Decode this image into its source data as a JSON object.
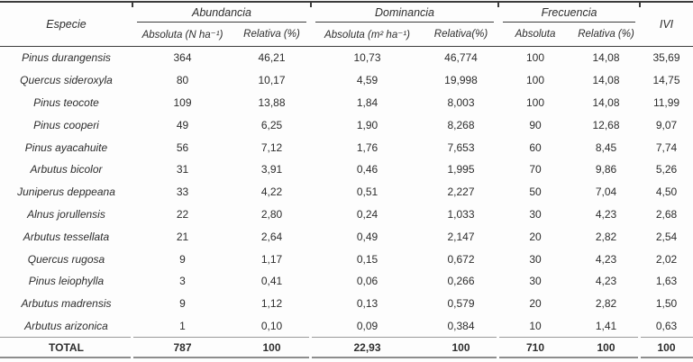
{
  "colors": {
    "text": "#2d2d2d",
    "line_dark": "#3c3c3c",
    "line_gray": "#9b9b9b",
    "line_gray2": "#8d8d8d",
    "bg": "#fdfdfd"
  },
  "table": {
    "header": {
      "especie": "Especie",
      "ivi": "IVI",
      "groups": [
        {
          "label": "Abundancia",
          "subs": [
            "Absoluta (N ha⁻¹)",
            "Relativa (%)"
          ]
        },
        {
          "label": "Dominancia",
          "subs": [
            "Absoluta (m² ha⁻¹)",
            "Relativa(%)"
          ]
        },
        {
          "label": "Frecuencia",
          "subs": [
            "Absoluta",
            "Relativa (%)"
          ]
        }
      ]
    },
    "rows": [
      [
        "Pinus durangensis",
        "364",
        "46,21",
        "10,73",
        "46,774",
        "100",
        "14,08",
        "35,69"
      ],
      [
        "Quercus sideroxyla",
        "80",
        "10,17",
        "4,59",
        "19,998",
        "100",
        "14,08",
        "14,75"
      ],
      [
        "Pinus teocote",
        "109",
        "13,88",
        "1,84",
        "8,003",
        "100",
        "14,08",
        "11,99"
      ],
      [
        "Pinus cooperi",
        "49",
        "6,25",
        "1,90",
        "8,268",
        "90",
        "12,68",
        "9,07"
      ],
      [
        "Pinus ayacahuite",
        "56",
        "7,12",
        "1,76",
        "7,653",
        "60",
        "8,45",
        "7,74"
      ],
      [
        "Arbutus bicolor",
        "31",
        "3,91",
        "0,46",
        "1,995",
        "70",
        "9,86",
        "5,26"
      ],
      [
        "Juniperus deppeana",
        "33",
        "4,22",
        "0,51",
        "2,227",
        "50",
        "7,04",
        "4,50"
      ],
      [
        "Alnus jorullensis",
        "22",
        "2,80",
        "0,24",
        "1,033",
        "30",
        "4,23",
        "2,68"
      ],
      [
        "Arbutus tessellata",
        "21",
        "2,64",
        "0,49",
        "2,147",
        "20",
        "2,82",
        "2,54"
      ],
      [
        "Quercus rugosa",
        "9",
        "1,17",
        "0,15",
        "0,672",
        "30",
        "4,23",
        "2,02"
      ],
      [
        "Pinus leiophylla",
        "3",
        "0,41",
        "0,06",
        "0,266",
        "30",
        "4,23",
        "1,63"
      ],
      [
        "Arbutus madrensis",
        "9",
        "1,12",
        "0,13",
        "0,579",
        "20",
        "2,82",
        "1,50"
      ],
      [
        "Arbutus arizonica",
        "1",
        "0,10",
        "0,09",
        "0,384",
        "10",
        "1,41",
        "0,63"
      ]
    ],
    "total": [
      "TOTAL",
      "787",
      "100",
      "22,93",
      "100",
      "710",
      "100",
      "100"
    ]
  }
}
